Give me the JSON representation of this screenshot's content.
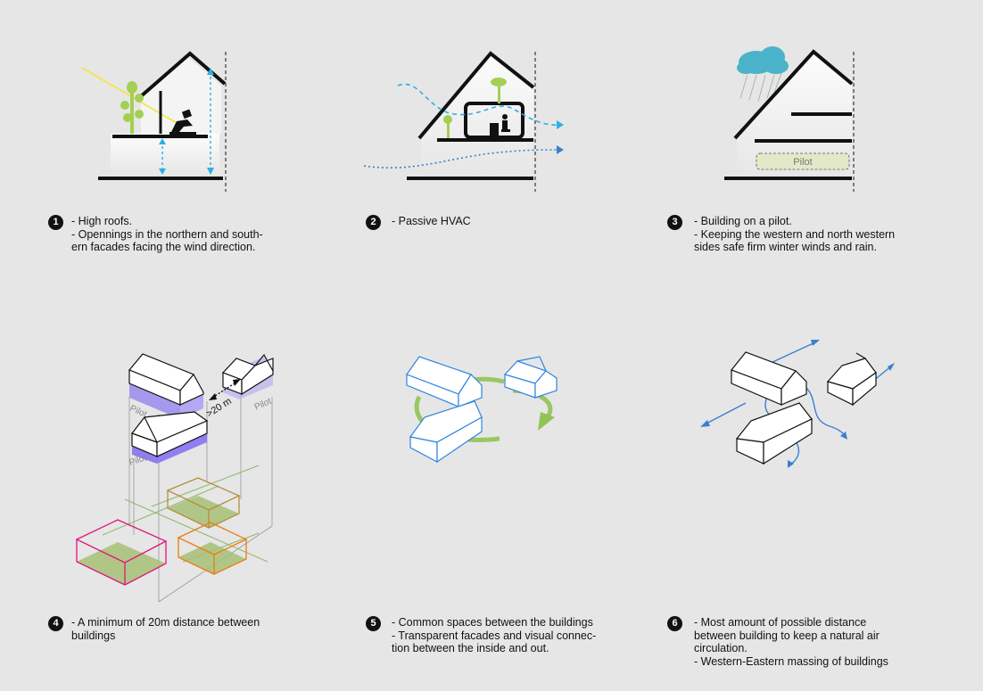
{
  "panels": [
    {
      "number": "1",
      "lines": [
        "- High roofs.",
        "- Opennings in the northern and south-",
        "ern facades facing the wind direction."
      ]
    },
    {
      "number": "2",
      "lines": [
        "- Passive HVAC"
      ]
    },
    {
      "number": "3",
      "lines": [
        "- Building on a pilot.",
        "- Keeping the western and north western",
        "sides safe firm winter winds and rain."
      ]
    },
    {
      "number": "4",
      "lines": [
        "- A minimum of 20m distance between",
        "buildings"
      ]
    },
    {
      "number": "5",
      "lines": [
        "- Common spaces between the buildings",
        "- Transparent facades and visual connec-",
        "tion between the inside and out."
      ]
    },
    {
      "number": "6",
      "lines": [
        "- Most amount of possible distance",
        "between building to keep a natural air",
        "circulation.",
        "- Western-Eastern massing of buildings"
      ]
    }
  ],
  "labels": {
    "pilot": "Pilot",
    "distance": ">20 m"
  },
  "colors": {
    "background": "#e6e6e6",
    "sun_ray": "#f2e73a",
    "tree": "#a4cf54",
    "rain_cloud": "#4ab3c9",
    "dimension_arrow": "#2ab0e3",
    "airflow": "#3a7fcf",
    "pilot_fill": "#e2e9c8",
    "pilot_purple": "#8f7ff0",
    "court_green": "#a6bf75",
    "box_magenta": "#e0157b",
    "box_orange": "#f07a10",
    "box_olive": "#b38f3c",
    "grid_green": "#8fb86a",
    "building_blue": "#2f86e0",
    "circle_green": "#92c356"
  }
}
